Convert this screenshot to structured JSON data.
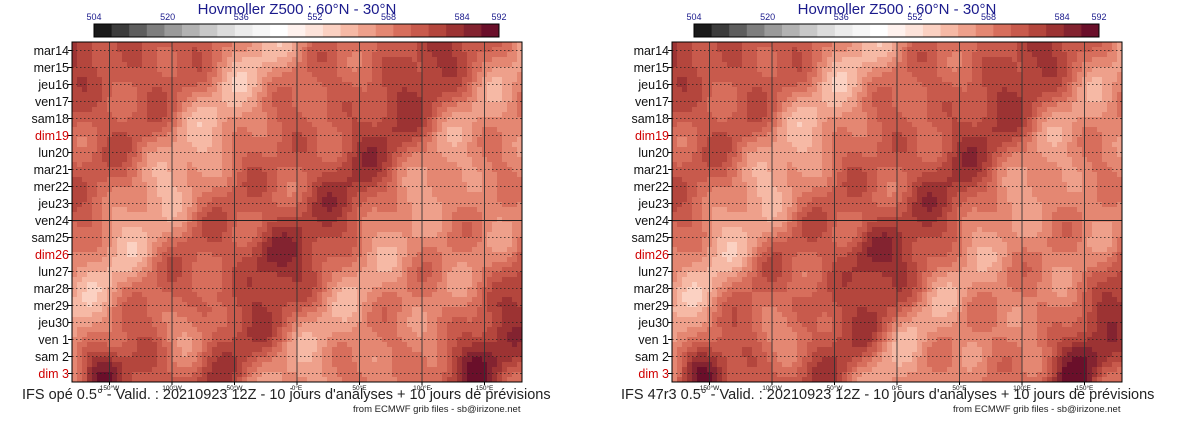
{
  "charts": [
    {
      "title": "Hovmoller Z500 : 60°N - 30°N",
      "footer": "IFS opé 0.5° - Valid. : 20210923 12Z - 10 jours d'analyses + 10 jours de prévisions",
      "credit": "from ECMWF grib files - sb@irizone.net"
    },
    {
      "title": "Hovmoller Z500 : 60°N - 30°N",
      "footer": "IFS 47r3 0.5° - Valid. : 20210923 12Z - 10 jours d'analyses + 10 jours de prévisions",
      "credit": "from ECMWF grib files - sb@irizone.net"
    }
  ],
  "chart_data": [
    {
      "type": "heatmap",
      "title": "Hovmoller Z500 : 60°N - 30°N",
      "colorbar": {
        "ticks": [
          504,
          520,
          536,
          552,
          568,
          584,
          592
        ],
        "colors": [
          "#1a1a1a",
          "#3c3c3c",
          "#5e5e5e",
          "#7e7e7e",
          "#9a9a9a",
          "#b2b2b2",
          "#c8c8c8",
          "#dcdcdc",
          "#ececec",
          "#f6f6f6",
          "#ffffff",
          "#fff2ee",
          "#fde3da",
          "#fbd1c2",
          "#f6b9a5",
          "#eea08b",
          "#e48772",
          "#d76e5c",
          "#c85a4c",
          "#b4463d",
          "#9c3333",
          "#832330",
          "#6a0f2a"
        ]
      },
      "x_ticks": [
        "150°W",
        "100°W",
        "50°W",
        "0°E",
        "50°E",
        "100°E",
        "150°E"
      ],
      "y_labels": [
        "mar14",
        "mer15",
        "jeu16",
        "ven17",
        "sam18",
        "dim19",
        "lun20",
        "mar21",
        "mer22",
        "jeu23",
        "ven24",
        "sam25",
        "dim26",
        "lun27",
        "mar28",
        "mer29",
        "jeu30",
        "ven 1",
        "sam 2",
        "dim 3"
      ],
      "sunday_labels": [
        "dim19",
        "dim26",
        "dim 3"
      ],
      "sunday_color": "#d00000",
      "analysis_forecast_split": "ven24",
      "value_range": [
        504,
        592
      ]
    },
    {
      "type": "heatmap",
      "title": "Hovmoller Z500 : 60°N - 30°N",
      "colorbar": {
        "ticks": [
          504,
          520,
          536,
          552,
          568,
          584,
          592
        ],
        "colors": [
          "#1a1a1a",
          "#3c3c3c",
          "#5e5e5e",
          "#7e7e7e",
          "#9a9a9a",
          "#b2b2b2",
          "#c8c8c8",
          "#dcdcdc",
          "#ececec",
          "#f6f6f6",
          "#ffffff",
          "#fff2ee",
          "#fde3da",
          "#fbd1c2",
          "#f6b9a5",
          "#eea08b",
          "#e48772",
          "#d76e5c",
          "#c85a4c",
          "#b4463d",
          "#9c3333",
          "#832330",
          "#6a0f2a"
        ]
      },
      "x_ticks": [
        "150°W",
        "100°W",
        "50°W",
        "0°E",
        "50°E",
        "100°E",
        "150°E"
      ],
      "y_labels": [
        "mar14",
        "mer15",
        "jeu16",
        "ven17",
        "sam18",
        "dim19",
        "lun20",
        "mar21",
        "mer22",
        "jeu23",
        "ven24",
        "sam25",
        "dim26",
        "lun27",
        "mar28",
        "mer29",
        "jeu30",
        "ven 1",
        "sam 2",
        "dim 3"
      ],
      "sunday_labels": [
        "dim19",
        "dim26",
        "dim 3"
      ],
      "sunday_color": "#d00000",
      "analysis_forecast_split": "ven24",
      "value_range": [
        504,
        592
      ]
    }
  ]
}
